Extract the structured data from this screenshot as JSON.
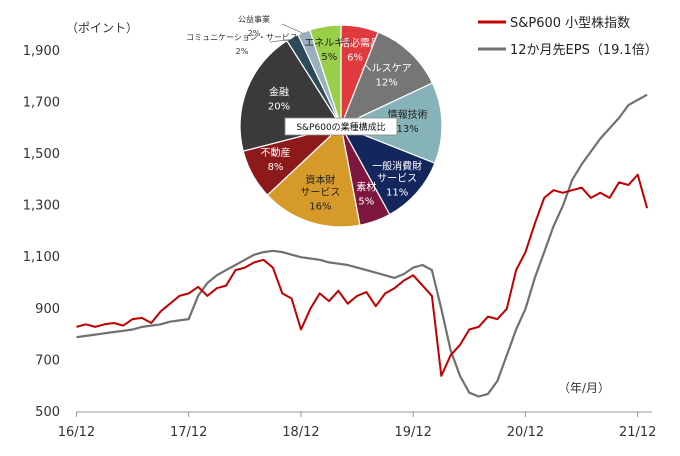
{
  "chart_data": [
    {
      "type": "line",
      "y_unit": "（ポイント）",
      "x_unit": "（年/月）",
      "ylim": [
        500,
        1950
      ],
      "yticks": [
        500,
        700,
        900,
        1100,
        1300,
        1500,
        1700,
        1900
      ],
      "ytick_labels": [
        "500",
        "700",
        "900",
        "1,100",
        "1,300",
        "1,500",
        "1,700",
        "1,900"
      ],
      "xlim": [
        "2016-12",
        "2022-01"
      ],
      "xticks": [
        "2016-12",
        "2017-12",
        "2018-12",
        "2019-12",
        "2020-12",
        "2021-12"
      ],
      "xtick_labels": [
        "16/12",
        "17/12",
        "18/12",
        "19/12",
        "20/12",
        "21/12"
      ],
      "grid": false,
      "legend_position": "top-right",
      "series": [
        {
          "name": "S&P600 小型株指数",
          "color": "#c00000",
          "points": [
            [
              "2016-12",
              830
            ],
            [
              "2017-01",
              840
            ],
            [
              "2017-02",
              830
            ],
            [
              "2017-03",
              840
            ],
            [
              "2017-04",
              845
            ],
            [
              "2017-05",
              835
            ],
            [
              "2017-06",
              860
            ],
            [
              "2017-07",
              865
            ],
            [
              "2017-08",
              845
            ],
            [
              "2017-09",
              890
            ],
            [
              "2017-10",
              920
            ],
            [
              "2017-11",
              950
            ],
            [
              "2017-12",
              960
            ],
            [
              "2018-01",
              985
            ],
            [
              "2018-02",
              950
            ],
            [
              "2018-03",
              980
            ],
            [
              "2018-04",
              990
            ],
            [
              "2018-05",
              1050
            ],
            [
              "2018-06",
              1060
            ],
            [
              "2018-07",
              1080
            ],
            [
              "2018-08",
              1090
            ],
            [
              "2018-09",
              1060
            ],
            [
              "2018-10",
              960
            ],
            [
              "2018-11",
              940
            ],
            [
              "2018-12",
              820
            ],
            [
              "2019-01",
              900
            ],
            [
              "2019-02",
              960
            ],
            [
              "2019-03",
              930
            ],
            [
              "2019-04",
              970
            ],
            [
              "2019-05",
              920
            ],
            [
              "2019-06",
              950
            ],
            [
              "2019-07",
              965
            ],
            [
              "2019-08",
              910
            ],
            [
              "2019-09",
              960
            ],
            [
              "2019-10",
              980
            ],
            [
              "2019-11",
              1010
            ],
            [
              "2019-12",
              1030
            ],
            [
              "2020-01",
              990
            ],
            [
              "2020-02",
              950
            ],
            [
              "2020-03",
              640
            ],
            [
              "2020-04",
              720
            ],
            [
              "2020-05",
              760
            ],
            [
              "2020-06",
              820
            ],
            [
              "2020-07",
              830
            ],
            [
              "2020-08",
              870
            ],
            [
              "2020-09",
              860
            ],
            [
              "2020-10",
              900
            ],
            [
              "2020-11",
              1050
            ],
            [
              "2020-12",
              1120
            ],
            [
              "2021-01",
              1230
            ],
            [
              "2021-02",
              1330
            ],
            [
              "2021-03",
              1360
            ],
            [
              "2021-04",
              1350
            ],
            [
              "2021-05",
              1360
            ],
            [
              "2021-06",
              1370
            ],
            [
              "2021-07",
              1330
            ],
            [
              "2021-08",
              1350
            ],
            [
              "2021-09",
              1330
            ],
            [
              "2021-10",
              1390
            ],
            [
              "2021-11",
              1380
            ],
            [
              "2021-12",
              1420
            ],
            [
              "2022-01",
              1290
            ]
          ]
        },
        {
          "name": "12か月先EPS（19.1倍）",
          "color": "#707070",
          "points": [
            [
              "2016-12",
              790
            ],
            [
              "2017-01",
              795
            ],
            [
              "2017-02",
              800
            ],
            [
              "2017-03",
              805
            ],
            [
              "2017-04",
              810
            ],
            [
              "2017-05",
              815
            ],
            [
              "2017-06",
              820
            ],
            [
              "2017-07",
              830
            ],
            [
              "2017-08",
              835
            ],
            [
              "2017-09",
              840
            ],
            [
              "2017-10",
              850
            ],
            [
              "2017-11",
              855
            ],
            [
              "2017-12",
              860
            ],
            [
              "2018-01",
              950
            ],
            [
              "2018-02",
              1000
            ],
            [
              "2018-03",
              1030
            ],
            [
              "2018-04",
              1050
            ],
            [
              "2018-05",
              1070
            ],
            [
              "2018-06",
              1090
            ],
            [
              "2018-07",
              1110
            ],
            [
              "2018-08",
              1120
            ],
            [
              "2018-09",
              1125
            ],
            [
              "2018-10",
              1120
            ],
            [
              "2018-11",
              1110
            ],
            [
              "2018-12",
              1100
            ],
            [
              "2019-01",
              1095
            ],
            [
              "2019-02",
              1090
            ],
            [
              "2019-03",
              1080
            ],
            [
              "2019-04",
              1075
            ],
            [
              "2019-05",
              1070
            ],
            [
              "2019-06",
              1060
            ],
            [
              "2019-07",
              1050
            ],
            [
              "2019-08",
              1040
            ],
            [
              "2019-09",
              1030
            ],
            [
              "2019-10",
              1020
            ],
            [
              "2019-11",
              1035
            ],
            [
              "2019-12",
              1060
            ],
            [
              "2020-01",
              1070
            ],
            [
              "2020-02",
              1050
            ],
            [
              "2020-03",
              900
            ],
            [
              "2020-04",
              740
            ],
            [
              "2020-05",
              640
            ],
            [
              "2020-06",
              575
            ],
            [
              "2020-07",
              560
            ],
            [
              "2020-08",
              570
            ],
            [
              "2020-09",
              620
            ],
            [
              "2020-10",
              720
            ],
            [
              "2020-11",
              820
            ],
            [
              "2020-12",
              900
            ],
            [
              "2021-01",
              1020
            ],
            [
              "2021-02",
              1120
            ],
            [
              "2021-03",
              1220
            ],
            [
              "2021-04",
              1300
            ],
            [
              "2021-05",
              1400
            ],
            [
              "2021-06",
              1460
            ],
            [
              "2021-07",
              1510
            ],
            [
              "2021-08",
              1560
            ],
            [
              "2021-09",
              1600
            ],
            [
              "2021-10",
              1640
            ],
            [
              "2021-11",
              1690
            ],
            [
              "2021-12",
              1710
            ],
            [
              "2022-01",
              1730
            ]
          ]
        }
      ]
    },
    {
      "type": "pie",
      "title": "S&P600の業種構成比",
      "slices": [
        {
          "label": "生活必需品",
          "value": 6,
          "color": "#e0393e"
        },
        {
          "label": "ヘルスケア",
          "value": 12,
          "color": "#767676"
        },
        {
          "label": "情報技術",
          "value": 13,
          "color": "#86b3b8"
        },
        {
          "label": "一般消費財・サービス",
          "value": 11,
          "color": "#14275c"
        },
        {
          "label": "素材",
          "value": 5,
          "color": "#7d1740"
        },
        {
          "label": "資本財・サービス",
          "value": 16,
          "color": "#d69a2a"
        },
        {
          "label": "不動産",
          "value": 8,
          "color": "#8c1a1a"
        },
        {
          "label": "金融",
          "value": 20,
          "color": "#3a3a3a"
        },
        {
          "label": "コミュニケーション・サービス",
          "value": 2,
          "color": "#2e4a5a"
        },
        {
          "label": "公益事業",
          "value": 2,
          "color": "#9bb0bd"
        },
        {
          "label": "エネルギー",
          "value": 5,
          "color": "#9ad049"
        }
      ]
    }
  ]
}
